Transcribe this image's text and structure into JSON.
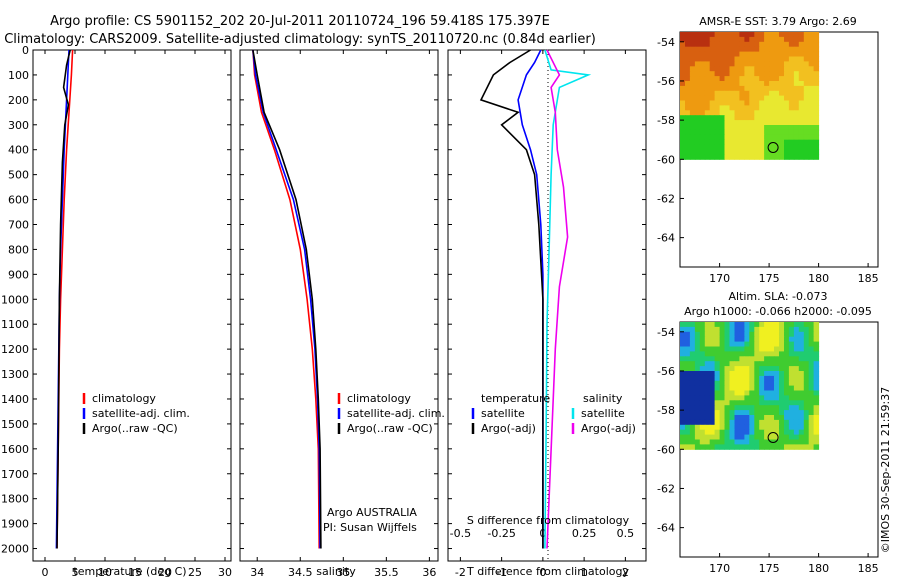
{
  "header": {
    "line1": "Argo profile: CS 5901152_202 20-Jul-2011 20110724_196 59.418S 175.397E",
    "line2": "Climatology: CARS2009. Satellite-adjusted climatology: synTS_20110720.nc (0.84d earlier)"
  },
  "colors": {
    "climatology": "#ff0000",
    "satellite": "#0000ff",
    "argo": "#000000",
    "sal_satellite": "#00e5ee",
    "sal_argo": "#ee00ee"
  },
  "chart_data": [
    {
      "type": "line",
      "panel": "temperature",
      "xlabel": "temperature (deg C)",
      "ylabel": "",
      "xlim": [
        -2,
        31
      ],
      "ylim": [
        2050,
        0
      ],
      "xticks": [
        "0",
        "5",
        "10",
        "15",
        "20",
        "25",
        "30"
      ],
      "yticks": [
        "0",
        "100",
        "200",
        "300",
        "400",
        "500",
        "600",
        "700",
        "800",
        "900",
        "1000",
        "1100",
        "1200",
        "1300",
        "1400",
        "1500",
        "1600",
        "1700",
        "1800",
        "1900",
        "2000"
      ],
      "legend": [
        "climatology",
        "satellite-adj. clim.",
        "Argo(..raw -QC)"
      ],
      "series": [
        {
          "name": "climatology",
          "x": [
            4.6,
            4.4,
            4.0,
            3.6,
            3.2,
            2.9,
            2.6,
            2.4,
            2.3,
            2.2,
            2.1,
            2.0
          ],
          "y": [
            0,
            100,
            250,
            400,
            600,
            800,
            1000,
            1200,
            1400,
            1600,
            1800,
            2000
          ]
        },
        {
          "name": "satellite-adj. clim.",
          "x": [
            4.0,
            3.8,
            3.5,
            3.2,
            2.9,
            2.6,
            2.4,
            2.3,
            2.2,
            2.1,
            2.0,
            1.9
          ],
          "y": [
            0,
            100,
            250,
            400,
            600,
            800,
            1000,
            1200,
            1400,
            1600,
            1800,
            2000
          ]
        },
        {
          "name": "Argo(..raw -QC)",
          "x": [
            4.2,
            3.6,
            3.1,
            3.9,
            3.3,
            2.9,
            2.6,
            2.4,
            2.3,
            2.2,
            2.1,
            2.0
          ],
          "y": [
            0,
            60,
            150,
            220,
            300,
            450,
            700,
            1000,
            1300,
            1600,
            1800,
            2000
          ]
        }
      ]
    },
    {
      "type": "line",
      "panel": "salinity",
      "xlabel": "salinity",
      "ylabel": "",
      "xlim": [
        33.8,
        36.1
      ],
      "ylim": [
        2050,
        0
      ],
      "xticks": [
        "34",
        "34.5",
        "35",
        "35.5",
        "36"
      ],
      "legend": [
        "climatology",
        "satellite-adj. clim.",
        "Argo(..raw -QC)"
      ],
      "annotation": [
        "Argo AUSTRALIA",
        "PI: Susan Wijffels"
      ],
      "series": [
        {
          "name": "climatology",
          "x": [
            33.95,
            33.97,
            34.05,
            34.2,
            34.38,
            34.5,
            34.58,
            34.64,
            34.68,
            34.71,
            34.72
          ],
          "y": [
            0,
            100,
            250,
            400,
            600,
            800,
            1000,
            1200,
            1400,
            1600,
            2000
          ]
        },
        {
          "name": "satellite-adj. clim.",
          "x": [
            33.95,
            33.98,
            34.07,
            34.22,
            34.42,
            34.55,
            34.62,
            34.67,
            34.7,
            34.72,
            34.73
          ],
          "y": [
            0,
            100,
            250,
            400,
            600,
            800,
            1000,
            1200,
            1400,
            1600,
            2000
          ]
        },
        {
          "name": "Argo(..raw -QC)",
          "x": [
            33.95,
            34.0,
            34.08,
            34.26,
            34.45,
            34.57,
            34.64,
            34.68,
            34.71,
            34.73,
            34.74
          ],
          "y": [
            0,
            100,
            250,
            400,
            600,
            800,
            1000,
            1200,
            1400,
            1600,
            2000
          ]
        }
      ]
    },
    {
      "type": "line",
      "panel": "difference",
      "xlabel": "T difference from climatology",
      "x2label": "S difference from climatology",
      "xlim": [
        -2.3,
        2.5
      ],
      "ylim": [
        2050,
        0
      ],
      "xticks": [
        "-2",
        "-1",
        "0",
        "1",
        "2"
      ],
      "x2ticks": [
        "-0.5",
        "-0.25",
        "0",
        "0.25",
        "0.5"
      ],
      "legend_temperature": {
        "title": "temperature",
        "entries": [
          "satellite",
          "Argo(-adj)"
        ]
      },
      "legend_salinity": {
        "title": "salinity",
        "entries": [
          "satellite",
          "Argo(-adj)"
        ]
      },
      "series": [
        {
          "name": "satellite",
          "x": [
            -0.05,
            -0.2,
            -0.4,
            -0.6,
            -0.5,
            -0.3,
            -0.15,
            -0.05,
            0,
            0,
            0,
            0
          ],
          "y": [
            0,
            50,
            100,
            200,
            300,
            400,
            500,
            700,
            900,
            1200,
            1600,
            2000
          ]
        },
        {
          "name": "Argo(-adj)",
          "x": [
            -0.3,
            -0.8,
            -1.2,
            -1.5,
            -0.6,
            -1.0,
            -0.4,
            -0.2,
            -0.1,
            0,
            0,
            0
          ],
          "y": [
            0,
            50,
            100,
            200,
            250,
            300,
            400,
            500,
            700,
            1000,
            1500,
            2000
          ]
        },
        {
          "name": "satellite",
          "x": [
            0.05,
            0.2,
            1.1,
            0.4,
            0.25,
            0.2,
            0.15,
            0.1,
            0.08,
            0.05
          ],
          "y": [
            0,
            80,
            100,
            150,
            300,
            500,
            800,
            1100,
            1500,
            2000
          ]
        },
        {
          "name": "Argo(-adj)",
          "x": [
            0.1,
            0.4,
            0.2,
            0.3,
            0.35,
            0.5,
            0.6,
            0.4,
            0.3,
            0.1
          ],
          "y": [
            0,
            100,
            150,
            250,
            400,
            550,
            750,
            950,
            1200,
            2000
          ]
        }
      ]
    },
    {
      "type": "heatmap",
      "panel": "sst-map",
      "title": "AMSR-E SST: 3.79 Argo: 2.69",
      "xlim": [
        166,
        186
      ],
      "ylim": [
        -65.5,
        -53.5
      ],
      "xticks": [
        "170",
        "175",
        "180",
        "185"
      ],
      "yticks": [
        "-54",
        "-56",
        "-58",
        "-60",
        "-62",
        "-64"
      ],
      "float_position": {
        "x": 175.4,
        "y": -59.4
      }
    },
    {
      "type": "heatmap",
      "panel": "sla-map",
      "title": [
        "Altim. SLA: -0.073",
        "Argo h1000: -0.066 h2000: -0.095"
      ],
      "xlim": [
        166,
        186
      ],
      "ylim": [
        -65.5,
        -53.5
      ],
      "xticks": [
        "170",
        "175",
        "180",
        "185"
      ],
      "yticks": [
        "-54",
        "-56",
        "-58",
        "-60",
        "-62",
        "-64"
      ],
      "float_position": {
        "x": 175.4,
        "y": -59.4
      }
    }
  ],
  "footer": {
    "credit": "©IMOS 30-Sep-2011 21:59:37"
  }
}
